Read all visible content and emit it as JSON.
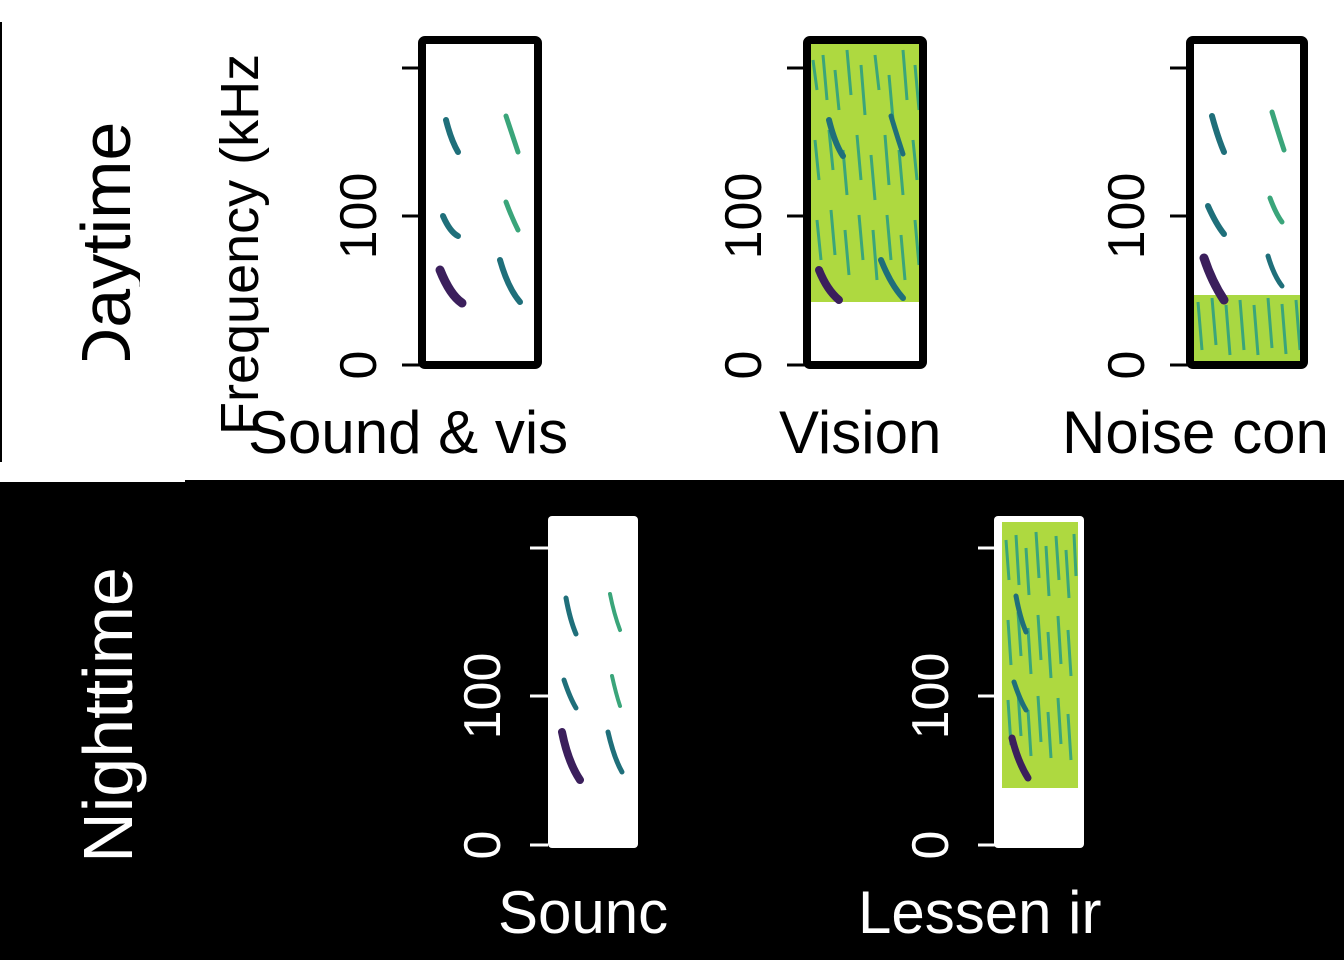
{
  "rows": [
    {
      "label": "Daytime",
      "panels": [
        {
          "caption": "Sound & vis",
          "ticks": [
            "0",
            "100"
          ],
          "noise": "none"
        },
        {
          "caption": "Vision",
          "ticks": [
            "0",
            "100"
          ],
          "noise": "full"
        },
        {
          "caption": "Noise con",
          "ticks": [
            "0",
            "100"
          ],
          "noise": "low-band"
        }
      ]
    },
    {
      "label": "Nighttime",
      "panels": [
        {
          "caption": "Sounc",
          "ticks": [
            "0",
            "100"
          ],
          "noise": "none"
        },
        {
          "caption": "Lessen ir",
          "ticks": [
            "0",
            "100"
          ],
          "noise": "full"
        }
      ]
    }
  ],
  "y_axis_label": "Frequency (kHz",
  "colors": {
    "dark_bg": "#000000",
    "light_bg": "#ffffff",
    "call_dark": "#3b1f5c",
    "call_mid": "#1f6f7a",
    "call_light": "#3aa57a",
    "noise_green": "#7ac95a",
    "noise_yellow": "#d9e62a"
  }
}
